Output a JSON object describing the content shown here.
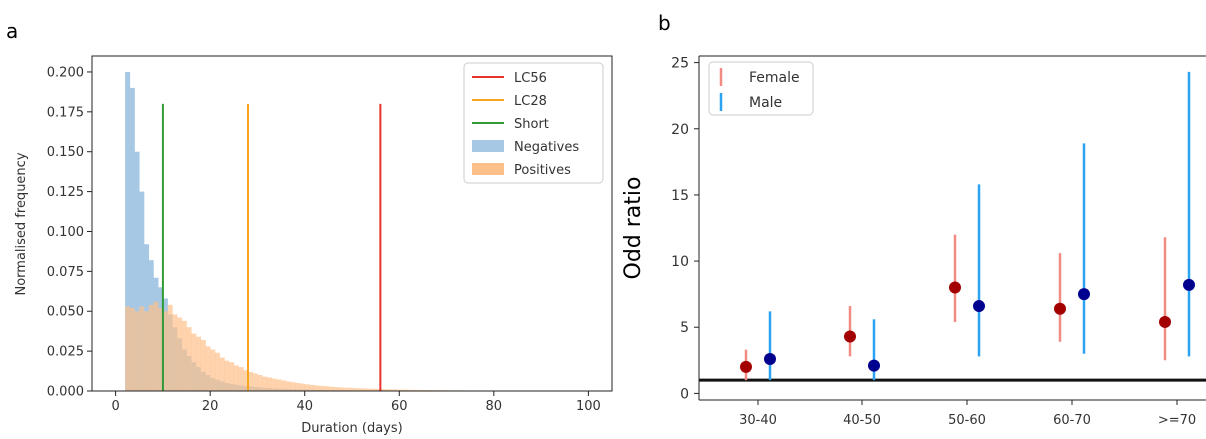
{
  "panels": {
    "a_label": "a",
    "b_label": "b"
  },
  "chart_data": [
    {
      "type": "bar",
      "subtype": "overlapping-histogram",
      "xlabel": "Duration (days)",
      "ylabel": "Normalised frequency",
      "xlim": [
        -5,
        105
      ],
      "ylim": [
        0,
        0.21
      ],
      "xticks": [
        "0",
        "20",
        "40",
        "60",
        "80",
        "100"
      ],
      "yticks": [
        "0.000",
        "0.025",
        "0.050",
        "0.075",
        "0.100",
        "0.125",
        "0.150",
        "0.175",
        "0.200"
      ],
      "bin_width": 1,
      "bin_start": 2,
      "legend_position": "top-right",
      "series": [
        {
          "name": "Negatives",
          "color": "#a6c8e4",
          "values": [
            0.2,
            0.19,
            0.15,
            0.125,
            0.092,
            0.082,
            0.071,
            0.065,
            0.058,
            0.048,
            0.04,
            0.033,
            0.026,
            0.022,
            0.018,
            0.015,
            0.012,
            0.01,
            0.008,
            0.007,
            0.006,
            0.005,
            0.0045,
            0.004,
            0.0035,
            0.003,
            0.0028,
            0.0025,
            0.0022,
            0.002,
            0.0018,
            0.0016,
            0.0015,
            0.0014,
            0.0012,
            0.0011,
            0.001,
            0.001,
            0.0009,
            0.0008,
            0.0007,
            0.0007,
            0.0006,
            0.0006,
            0.0005,
            0.0005,
            0.0004,
            0.0004,
            0.0004,
            0.0003,
            0.0003,
            0.0003,
            0.0003,
            0.0002,
            0.0002,
            0.0002,
            0.0002,
            0.0002,
            0.0001,
            0.0001
          ]
        },
        {
          "name": "Positives",
          "color": "#fdc08a",
          "values": [
            0.053,
            0.052,
            0.05,
            0.053,
            0.05,
            0.054,
            0.056,
            0.052,
            0.05,
            0.054,
            0.048,
            0.046,
            0.044,
            0.04,
            0.036,
            0.034,
            0.032,
            0.028,
            0.026,
            0.024,
            0.021,
            0.019,
            0.018,
            0.016,
            0.015,
            0.013,
            0.012,
            0.011,
            0.01,
            0.009,
            0.0085,
            0.0078,
            0.0072,
            0.0066,
            0.006,
            0.0055,
            0.005,
            0.0046,
            0.0042,
            0.0038,
            0.0035,
            0.0032,
            0.003,
            0.0027,
            0.0025,
            0.0023,
            0.0021,
            0.002,
            0.0018,
            0.0017,
            0.0016,
            0.0015,
            0.0014,
            0.0013,
            0.0012,
            0.0011,
            0.001,
            0.0009,
            0.0009,
            0.0008,
            0.0007,
            0.0007,
            0.0006,
            0.0006,
            0.0006,
            0.0005,
            0.0005,
            0.0005,
            0.0004,
            0.0004,
            0.0004,
            0.0004,
            0.0003,
            0.0003,
            0.0003,
            0.0003,
            0.0003,
            0.0002,
            0.0002,
            0.0002,
            0.0002,
            0.0002,
            0.0002,
            0.0002,
            0.0001,
            0.0001,
            0.0001,
            0.0001,
            0.0001,
            0.0001,
            0.0001,
            0.0001,
            0.0001,
            0.0001
          ]
        }
      ],
      "vlines": [
        {
          "name": "LC56",
          "x": 56,
          "y_top": 0.18,
          "color": "#e8312a"
        },
        {
          "name": "LC28",
          "x": 28,
          "y_top": 0.18,
          "color": "#f7a51c"
        },
        {
          "name": "Short",
          "x": 10,
          "y_top": 0.18,
          "color": "#2e9b34"
        }
      ],
      "legend": [
        {
          "label": "LC56",
          "kind": "line",
          "color": "#e8312a"
        },
        {
          "label": "LC28",
          "kind": "line",
          "color": "#f7a51c"
        },
        {
          "label": "Short",
          "kind": "line",
          "color": "#2e9b34"
        },
        {
          "label": "Negatives",
          "kind": "patch",
          "color": "#a6c8e4"
        },
        {
          "label": "Positives",
          "kind": "patch",
          "color": "#fdc08a"
        }
      ]
    },
    {
      "type": "scatter",
      "subtype": "errorbar",
      "ylabel": "Odd ratio",
      "xlabel": "",
      "categories": [
        "30-40",
        "40-50",
        "50-60",
        "60-70",
        ">=70"
      ],
      "ylim": [
        -0.5,
        25.5
      ],
      "yticks": [
        "0",
        "5",
        "10",
        "15",
        "20",
        "25"
      ],
      "reference_line": 1,
      "legend_position": "top-left",
      "series": [
        {
          "name": "Female",
          "bar_color": "#f28b82",
          "point_color": "#a30000",
          "values": [
            2.0,
            4.3,
            8.0,
            6.4,
            5.4
          ],
          "lower": [
            1.0,
            2.8,
            5.4,
            3.9,
            2.5
          ],
          "upper": [
            3.3,
            6.6,
            12.0,
            10.6,
            11.8
          ]
        },
        {
          "name": "Male",
          "bar_color": "#2ba3f0",
          "point_color": "#00008f",
          "values": [
            2.6,
            2.1,
            6.6,
            7.5,
            8.2
          ],
          "lower": [
            1.0,
            1.0,
            2.8,
            3.0,
            2.8
          ],
          "upper": [
            6.2,
            5.6,
            15.8,
            18.9,
            24.3
          ]
        }
      ]
    }
  ]
}
